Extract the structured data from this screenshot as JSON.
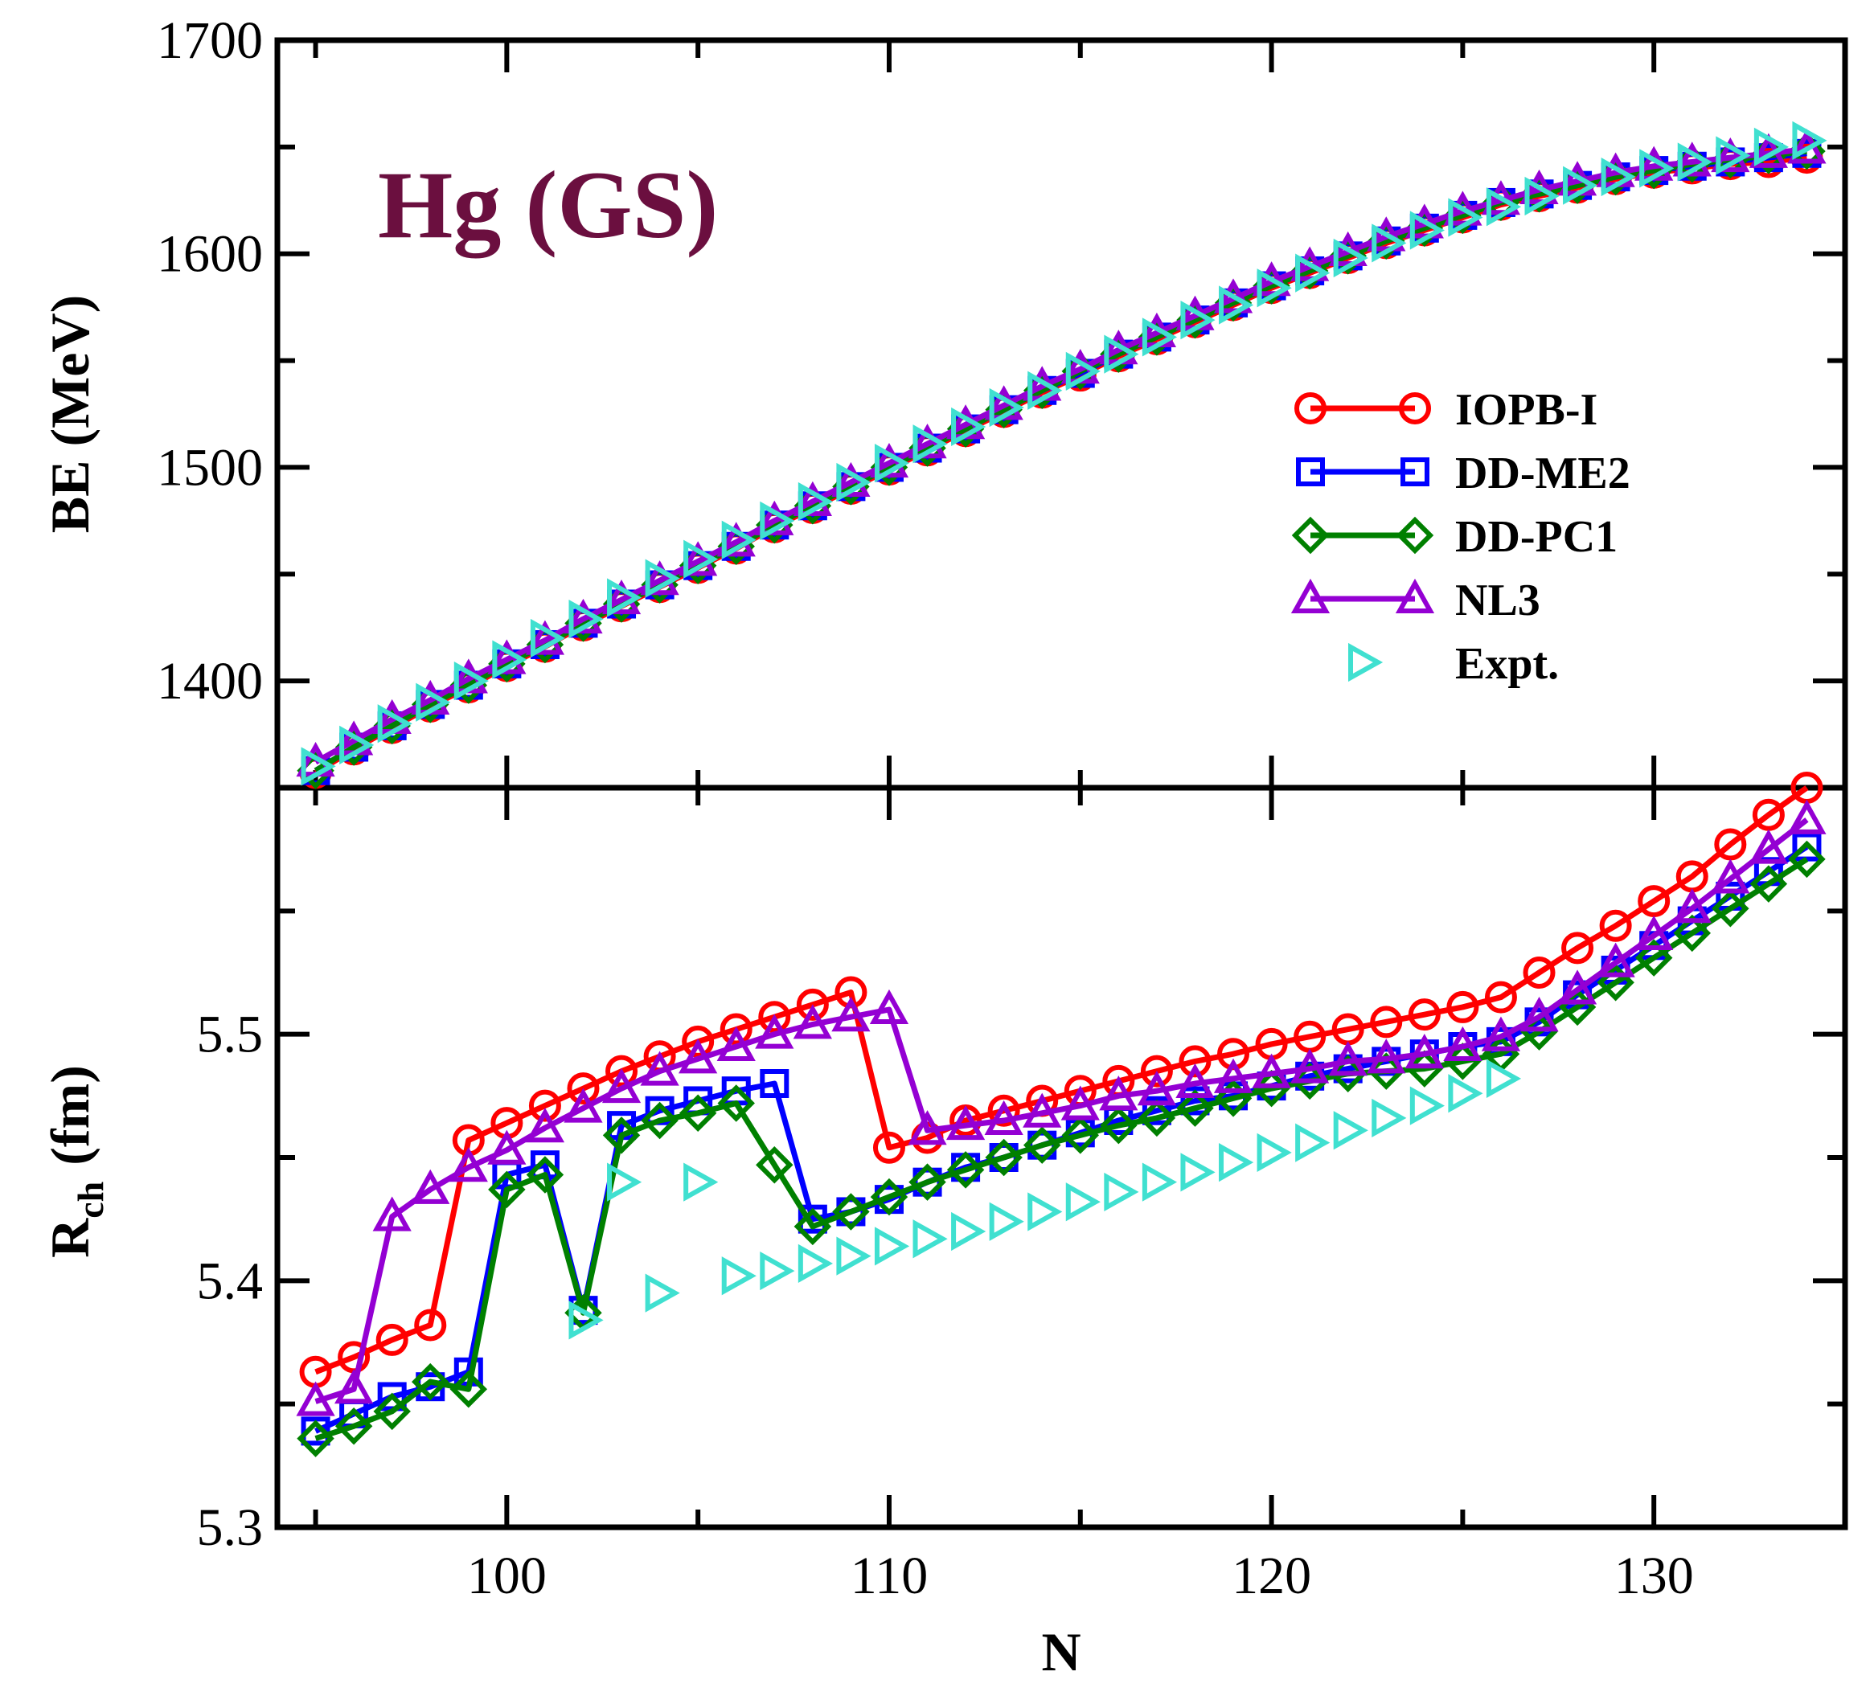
{
  "chart_data": [
    {
      "type": "line",
      "panel": "top",
      "annotation": "Hg (GS)",
      "annotation_color": "#6b0f3f",
      "ylabel": "BE (MeV)",
      "ylim": [
        1350,
        1700
      ],
      "yticks": [
        1400,
        1500,
        1600,
        1700
      ],
      "xlim": [
        94,
        135
      ],
      "x": [
        95,
        96,
        97,
        98,
        99,
        100,
        101,
        102,
        103,
        104,
        105,
        106,
        107,
        108,
        109,
        110,
        111,
        112,
        113,
        114,
        115,
        116,
        117,
        118,
        119,
        120,
        121,
        122,
        123,
        124,
        125,
        126,
        127,
        128,
        129,
        130,
        131,
        132,
        133,
        134
      ],
      "series": [
        {
          "name": "IOPB-I",
          "marker": "circle",
          "color": "#ff0000",
          "values": [
            1357,
            1368,
            1378,
            1388,
            1397,
            1407,
            1416,
            1426,
            1435,
            1444,
            1453,
            1462,
            1472,
            1481,
            1490,
            1499,
            1508,
            1517,
            1526,
            1535,
            1543,
            1552,
            1560,
            1568,
            1576,
            1584,
            1591,
            1598,
            1605,
            1611,
            1617,
            1623,
            1627,
            1631,
            1635,
            1638,
            1640,
            1642,
            1643,
            1645
          ]
        },
        {
          "name": "DD-ME2",
          "marker": "square",
          "color": "#0000ff",
          "values": [
            1358,
            1369,
            1379,
            1389,
            1398,
            1408,
            1417,
            1427,
            1436,
            1445,
            1454,
            1463,
            1473,
            1482,
            1491,
            1500,
            1509,
            1518,
            1527,
            1536,
            1544,
            1553,
            1561,
            1569,
            1577,
            1585,
            1592,
            1599,
            1606,
            1612,
            1618,
            1624,
            1628,
            1632,
            1636,
            1639,
            1641,
            1643,
            1645,
            1647
          ]
        },
        {
          "name": "DD-PC1",
          "marker": "diamond",
          "color": "#008000",
          "values": [
            1358,
            1369,
            1379,
            1389,
            1398,
            1408,
            1417,
            1427,
            1436,
            1445,
            1454,
            1463,
            1473,
            1482,
            1491,
            1500,
            1509,
            1518,
            1527,
            1536,
            1545,
            1553,
            1561,
            1569,
            1577,
            1585,
            1592,
            1599,
            1606,
            1612,
            1618,
            1624,
            1628,
            1632,
            1636,
            1639,
            1642,
            1644,
            1646,
            1648
          ]
        },
        {
          "name": "NL3",
          "marker": "triangle-up",
          "color": "#9400d3",
          "values": [
            1362,
            1372,
            1382,
            1391,
            1401,
            1410,
            1419,
            1429,
            1438,
            1447,
            1456,
            1465,
            1475,
            1484,
            1493,
            1502,
            1511,
            1520,
            1529,
            1538,
            1546,
            1555,
            1563,
            1571,
            1579,
            1587,
            1594,
            1601,
            1608,
            1614,
            1620,
            1625,
            1630,
            1634,
            1638,
            1641,
            1643,
            1645,
            1647,
            1649
          ]
        },
        {
          "name": "Expt.",
          "marker": "triangle-right",
          "color": "#40e0d0",
          "line": false,
          "values": [
            1360,
            1370,
            1380,
            1390,
            1400,
            1410,
            1420,
            1429,
            1439,
            1448,
            1457,
            1466,
            1475,
            1484,
            1493,
            1502,
            1511,
            1519,
            1528,
            1536,
            1545,
            1553,
            1561,
            1569,
            1576,
            1584,
            1591,
            1598,
            1605,
            1611,
            1617,
            1622,
            1627,
            1632,
            1636,
            1640,
            1643,
            1646,
            1650,
            1653
          ]
        }
      ],
      "legend": {
        "placement": "right",
        "entries": [
          "IOPB-I",
          "DD-ME2",
          "DD-PC1",
          "NL3",
          "Expt."
        ]
      }
    },
    {
      "type": "line",
      "panel": "bottom",
      "ylabel": "R",
      "ylabel_sub": "ch",
      "ylabel_unit": "(fm)",
      "ylim": [
        5.3,
        5.6
      ],
      "yticks": [
        5.3,
        5.4,
        5.5
      ],
      "xlabel": "N",
      "xlim": [
        94,
        135
      ],
      "xticks": [
        100,
        110,
        120,
        130
      ],
      "x": [
        95,
        96,
        97,
        98,
        99,
        100,
        101,
        102,
        103,
        104,
        105,
        106,
        107,
        108,
        109,
        110,
        111,
        112,
        113,
        114,
        115,
        116,
        117,
        118,
        119,
        120,
        121,
        122,
        123,
        124,
        125,
        126,
        127,
        128,
        129,
        130,
        131,
        132,
        133,
        134
      ],
      "series": [
        {
          "name": "IOPB-I",
          "marker": "circle",
          "color": "#ff0000",
          "values": [
            5.363,
            5.369,
            5.376,
            5.382,
            5.457,
            5.464,
            5.471,
            5.478,
            5.485,
            5.491,
            5.497,
            5.502,
            5.507,
            5.512,
            5.517,
            5.454,
            5.458,
            5.465,
            5.469,
            5.473,
            5.477,
            5.481,
            5.485,
            5.489,
            5.492,
            5.496,
            5.499,
            5.502,
            5.505,
            5.508,
            5.511,
            5.515,
            5.525,
            5.535,
            5.544,
            5.554,
            5.564,
            5.577,
            5.589,
            5.6
          ]
        },
        {
          "name": "DD-ME2",
          "marker": "square",
          "color": "#0000ff",
          "values": [
            5.339,
            5.346,
            5.353,
            5.357,
            5.363,
            5.443,
            5.447,
            5.388,
            5.463,
            5.469,
            5.473,
            5.477,
            5.48,
            5.425,
            5.428,
            5.433,
            5.44,
            5.446,
            5.45,
            5.455,
            5.46,
            5.465,
            5.469,
            5.473,
            5.475,
            5.479,
            5.483,
            5.486,
            5.489,
            5.492,
            5.495,
            5.497,
            5.505,
            5.516,
            5.526,
            5.536,
            5.546,
            5.556,
            5.566,
            5.576
          ]
        },
        {
          "name": "DD-PC1",
          "marker": "diamond",
          "color": "#008000",
          "values": [
            5.336,
            5.341,
            5.347,
            5.359,
            5.356,
            5.437,
            5.443,
            5.387,
            5.459,
            5.465,
            5.468,
            5.472,
            5.447,
            5.422,
            5.428,
            5.434,
            5.44,
            5.445,
            5.45,
            5.455,
            5.459,
            5.463,
            5.466,
            5.47,
            5.474,
            5.478,
            5.481,
            5.484,
            5.485,
            5.486,
            5.489,
            5.492,
            5.501,
            5.511,
            5.521,
            5.531,
            5.541,
            5.551,
            5.561,
            5.571
          ]
        },
        {
          "name": "NL3",
          "marker": "triangle-up",
          "color": "#9400d3",
          "values": [
            5.351,
            5.356,
            5.426,
            5.437,
            5.446,
            5.453,
            5.462,
            5.47,
            5.478,
            5.485,
            5.49,
            5.495,
            5.5,
            5.504,
            5.507,
            5.51,
            5.461,
            5.463,
            5.465,
            5.468,
            5.471,
            5.475,
            5.477,
            5.48,
            5.482,
            5.484,
            5.486,
            5.489,
            5.49,
            5.492,
            5.495,
            5.499,
            5.507,
            5.518,
            5.529,
            5.54,
            5.551,
            5.563,
            5.575,
            5.587
          ]
        },
        {
          "name": "Expt.",
          "marker": "triangle-right",
          "color": "#40e0d0",
          "line": false,
          "points": [
            [
              102,
              5.384
            ],
            [
              103,
              5.44
            ],
            [
              104,
              5.395
            ],
            [
              105,
              5.44
            ],
            [
              106,
              5.402
            ],
            [
              107,
              5.404
            ],
            [
              108,
              5.407
            ],
            [
              109,
              5.41
            ],
            [
              110,
              5.414
            ],
            [
              111,
              5.417
            ],
            [
              112,
              5.42
            ],
            [
              113,
              5.424
            ],
            [
              114,
              5.428
            ],
            [
              115,
              5.432
            ],
            [
              116,
              5.436
            ],
            [
              117,
              5.44
            ],
            [
              118,
              5.444
            ],
            [
              119,
              5.448
            ],
            [
              120,
              5.452
            ],
            [
              121,
              5.456
            ],
            [
              122,
              5.461
            ],
            [
              123,
              5.466
            ],
            [
              124,
              5.471
            ],
            [
              125,
              5.476
            ],
            [
              126,
              5.482
            ]
          ]
        }
      ]
    }
  ]
}
